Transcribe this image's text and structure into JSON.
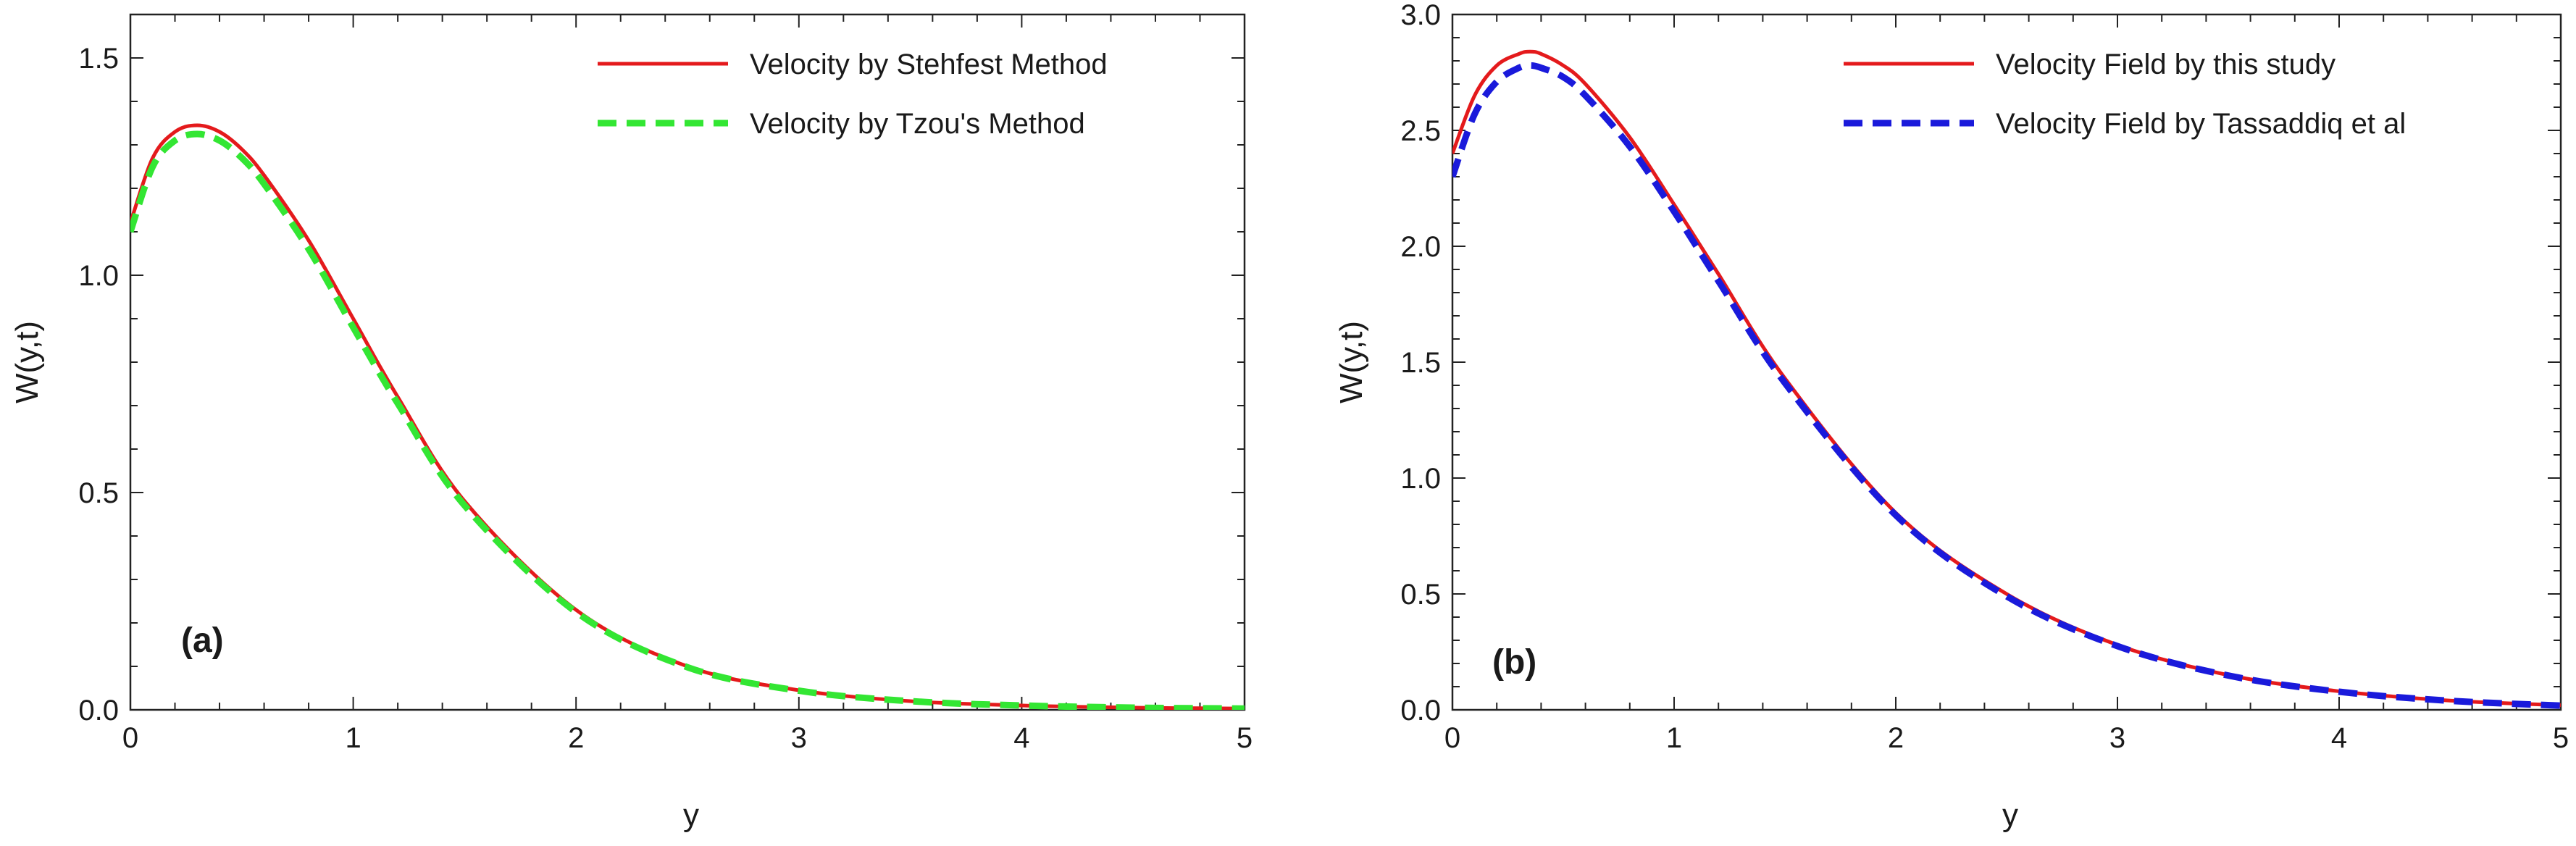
{
  "chart_data": [
    {
      "type": "line",
      "panel_label": "(a)",
      "xlabel": "y",
      "ylabel": "W(y,t)",
      "xlim": [
        0,
        5
      ],
      "ylim": [
        0,
        1.6
      ],
      "xticks": [
        "0",
        "1",
        "2",
        "3",
        "4",
        "5"
      ],
      "yticks": [
        "0.0",
        "0.5",
        "1.0",
        "1.5"
      ],
      "grid": false,
      "legend_position": "top-right",
      "x": [
        0,
        0.1,
        0.2,
        0.3,
        0.4,
        0.5,
        0.6,
        0.8,
        1.0,
        1.2,
        1.5,
        2.0,
        2.5,
        3.0,
        3.5,
        4.0,
        4.5,
        5.0
      ],
      "series": [
        {
          "name": "Velocity by Stehfest Method",
          "color": "#e41a1c",
          "style": "solid",
          "values": [
            1.12,
            1.27,
            1.33,
            1.345,
            1.33,
            1.29,
            1.23,
            1.08,
            0.9,
            0.72,
            0.48,
            0.23,
            0.1,
            0.045,
            0.02,
            0.01,
            0.005,
            0.003
          ]
        },
        {
          "name": "Velocity by Tzou's Method",
          "color": "#33e633",
          "style": "dashed",
          "values": [
            1.1,
            1.25,
            1.31,
            1.325,
            1.31,
            1.27,
            1.21,
            1.06,
            0.88,
            0.705,
            0.47,
            0.225,
            0.098,
            0.044,
            0.02,
            0.01,
            0.005,
            0.003
          ]
        }
      ]
    },
    {
      "type": "line",
      "panel_label": "(b)",
      "xlabel": "y",
      "ylabel": "W(y,t)",
      "xlim": [
        0,
        5
      ],
      "ylim": [
        0,
        3.0
      ],
      "xticks": [
        "0",
        "1",
        "2",
        "3",
        "4",
        "5"
      ],
      "yticks": [
        "0.0",
        "0.5",
        "1.0",
        "1.5",
        "2.0",
        "2.5",
        "3.0"
      ],
      "grid": false,
      "legend_position": "top-right",
      "x": [
        0,
        0.1,
        0.2,
        0.3,
        0.35,
        0.4,
        0.5,
        0.6,
        0.8,
        1.0,
        1.2,
        1.5,
        2.0,
        2.5,
        3.0,
        3.5,
        4.0,
        4.5,
        5.0
      ],
      "series": [
        {
          "name": "Velocity Field by this study",
          "color": "#e41a1c",
          "style": "solid",
          "values": [
            2.4,
            2.65,
            2.78,
            2.83,
            2.84,
            2.83,
            2.78,
            2.7,
            2.47,
            2.18,
            1.88,
            1.43,
            0.85,
            0.5,
            0.28,
            0.15,
            0.08,
            0.04,
            0.02
          ]
        },
        {
          "name": "Velocity Field by Tassaddiq et al",
          "color": "#1a1adb",
          "style": "dashed",
          "values": [
            2.3,
            2.57,
            2.71,
            2.77,
            2.78,
            2.77,
            2.73,
            2.65,
            2.43,
            2.15,
            1.85,
            1.41,
            0.84,
            0.49,
            0.275,
            0.148,
            0.078,
            0.039,
            0.018
          ]
        }
      ]
    }
  ]
}
